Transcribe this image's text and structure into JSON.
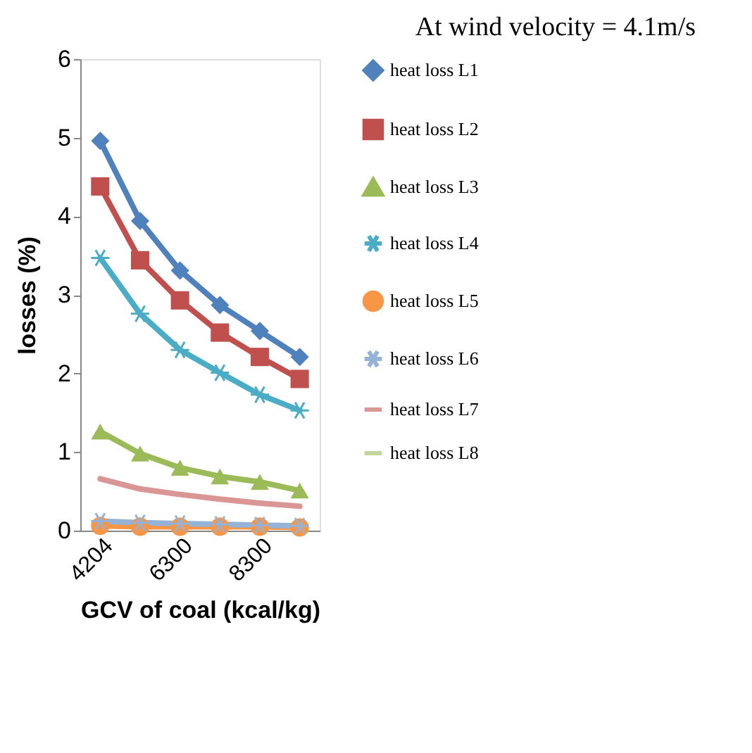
{
  "chart_data": {
    "type": "line",
    "title": "At wind velocity = 4.1m/s",
    "xlabel": "GCV of coal (kcal/kg)",
    "ylabel": "losses (%)",
    "categories": [
      "4204",
      null,
      "6300",
      null,
      "8300",
      null
    ],
    "ylim": [
      0,
      6
    ],
    "yticks": [
      0,
      1,
      2,
      3,
      4,
      5,
      6
    ],
    "grid": false,
    "legend": "right",
    "series": [
      {
        "name": "heat loss  L1",
        "color": "#4f81bd",
        "marker": "diamond",
        "values": [
          4.96,
          3.94,
          3.31,
          2.87,
          2.54,
          2.21
        ]
      },
      {
        "name": "heat loss  L2",
        "color": "#c0504d",
        "marker": "square",
        "values": [
          4.38,
          3.44,
          2.93,
          2.52,
          2.21,
          1.93
        ]
      },
      {
        "name": "heat loss L3",
        "color": "#9bbb59",
        "marker": "triangle",
        "values": [
          1.26,
          0.98,
          0.8,
          0.69,
          0.62,
          0.51
        ]
      },
      {
        "name": "heat loss L4",
        "color": "#4bacc6",
        "marker": "cross",
        "values": [
          3.47,
          2.76,
          2.3,
          2.01,
          1.73,
          1.53
        ]
      },
      {
        "name": "heat loss L5",
        "color": "#f79646",
        "marker": "circle",
        "values": [
          0.06,
          0.05,
          0.05,
          0.05,
          0.05,
          0.04
        ]
      },
      {
        "name": "heat loss L6",
        "color": "#95b3d7",
        "marker": "cross",
        "values": [
          0.12,
          0.1,
          0.09,
          0.08,
          0.07,
          0.06
        ]
      },
      {
        "name": "heat loss L7",
        "color": "#d99694",
        "marker": "none",
        "values": [
          0.66,
          0.53,
          0.46,
          0.4,
          0.35,
          0.31
        ]
      },
      {
        "name": "heat loss L8",
        "color": "#c3d69b",
        "marker": "none",
        "values": [
          null,
          null,
          null,
          null,
          null,
          null
        ]
      }
    ]
  }
}
